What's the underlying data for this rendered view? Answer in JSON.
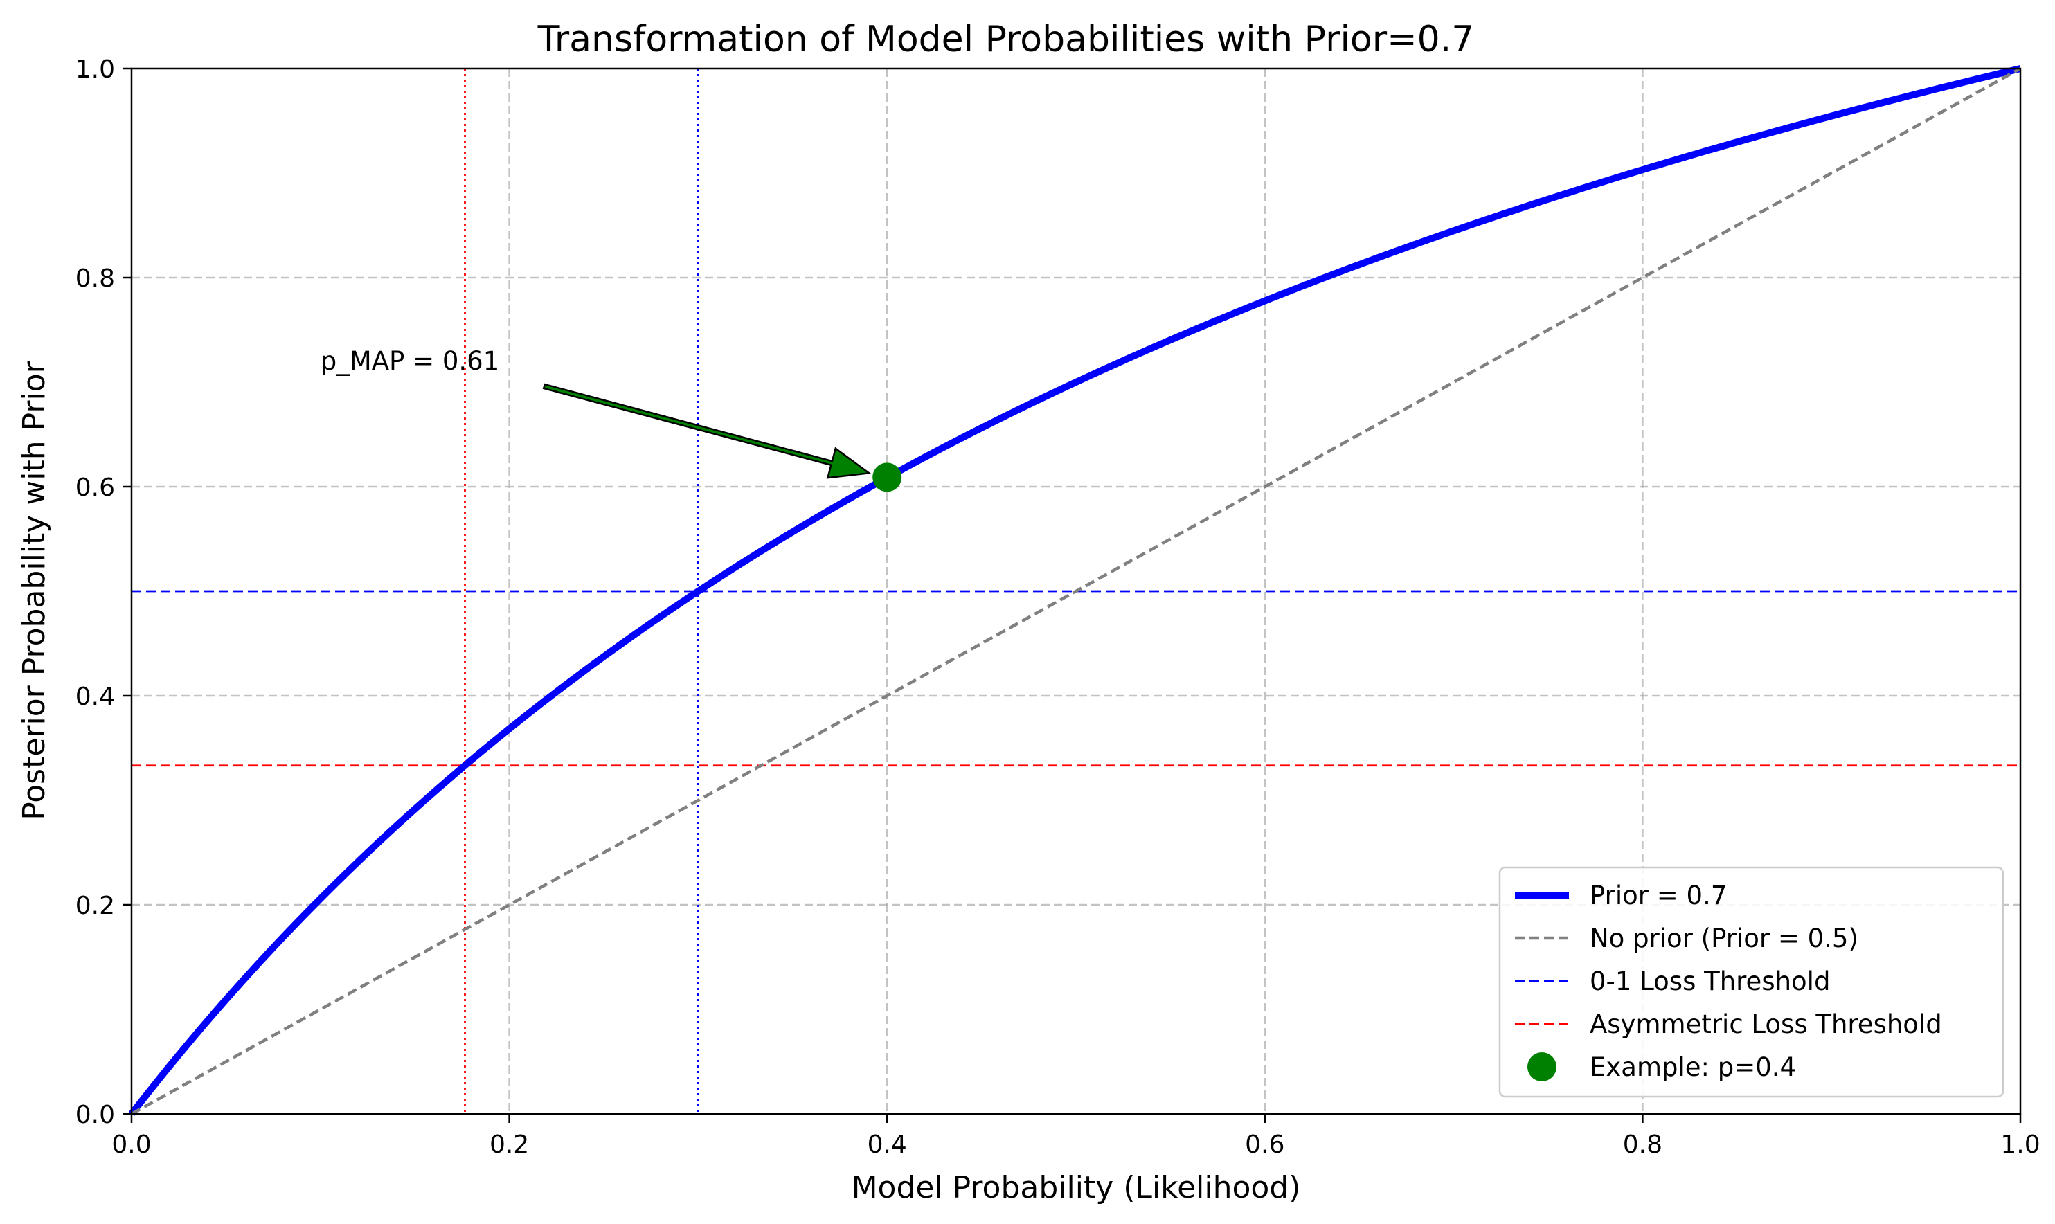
{
  "chart_data": {
    "type": "line",
    "title": "Transformation of Model Probabilities with Prior=0.7",
    "xlabel": "Model Probability (Likelihood)",
    "ylabel": "Posterior Probability with Prior",
    "xlim": [
      0.0,
      1.0
    ],
    "ylim": [
      0.0,
      1.0
    ],
    "x_ticks": [
      0.0,
      0.2,
      0.4,
      0.6,
      0.8,
      1.0
    ],
    "y_ticks": [
      0.0,
      0.2,
      0.4,
      0.6,
      0.8,
      1.0
    ],
    "x_tick_labels": [
      "0.0",
      "0.2",
      "0.4",
      "0.6",
      "0.8",
      "1.0"
    ],
    "y_tick_labels": [
      "0.0",
      "0.2",
      "0.4",
      "0.6",
      "0.8",
      "1.0"
    ],
    "grid": true,
    "legend_position": "lower-right",
    "series": [
      {
        "name": "Prior = 0.7",
        "kind": "curve",
        "prior": 0.7,
        "color": "#0000ff",
        "style": "solid",
        "x": [
          0.0,
          0.05,
          0.1,
          0.15,
          0.2,
          0.25,
          0.3,
          0.35,
          0.4,
          0.45,
          0.5,
          0.55,
          0.6,
          0.65,
          0.7,
          0.75,
          0.8,
          0.85,
          0.9,
          0.95,
          1.0
        ],
        "y": [
          0.0,
          0.109,
          0.206,
          0.292,
          0.368,
          0.438,
          0.5,
          0.557,
          0.609,
          0.656,
          0.7,
          0.74,
          0.778,
          0.813,
          0.845,
          0.875,
          0.903,
          0.93,
          0.955,
          0.978,
          1.0
        ]
      },
      {
        "name": "No prior (Prior = 0.5)",
        "kind": "curve",
        "color": "#808080",
        "style": "dashed",
        "x": [
          0.0,
          1.0
        ],
        "y": [
          0.0,
          1.0
        ]
      },
      {
        "name": "0-1 Loss Threshold",
        "kind": "hline",
        "y": 0.5,
        "color": "#0000ff",
        "style": "dashed"
      },
      {
        "name": "Asymmetric Loss Threshold",
        "kind": "hline",
        "y": 0.3333,
        "color": "#ff0000",
        "style": "dashed"
      },
      {
        "name": "Example: p=0.4",
        "kind": "point",
        "x": 0.4,
        "y": 0.609,
        "color": "#008000"
      }
    ],
    "vertical_lines": [
      {
        "x": 0.3,
        "color": "#0000ff",
        "style": "dotted"
      },
      {
        "x": 0.1765,
        "color": "#ff0000",
        "style": "dotted"
      }
    ],
    "annotation": {
      "text": "p_MAP = 0.61",
      "text_x": 0.1,
      "text_y": 0.7,
      "arrow_to_x": 0.4,
      "arrow_to_y": 0.609,
      "arrow_color": "#008000"
    }
  }
}
